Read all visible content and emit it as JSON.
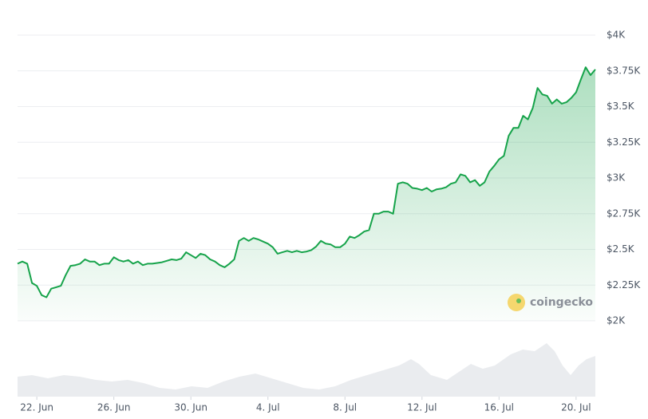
{
  "chart_data": {
    "type": "area",
    "series": [
      {
        "name": null,
        "color": "#16a34a",
        "values": [
          2400,
          2415,
          2400,
          2265,
          2245,
          2180,
          2165,
          2225,
          2235,
          2245,
          2320,
          2385,
          2390,
          2400,
          2430,
          2415,
          2415,
          2390,
          2400,
          2400,
          2445,
          2425,
          2415,
          2425,
          2400,
          2415,
          2390,
          2400,
          2400,
          2405,
          2410,
          2420,
          2430,
          2425,
          2435,
          2480,
          2460,
          2440,
          2470,
          2460,
          2430,
          2415,
          2390,
          2375,
          2400,
          2430,
          2560,
          2580,
          2560,
          2580,
          2570,
          2555,
          2540,
          2515,
          2470,
          2480,
          2490,
          2480,
          2490,
          2480,
          2485,
          2495,
          2520,
          2560,
          2540,
          2535,
          2515,
          2515,
          2540,
          2590,
          2580,
          2600,
          2625,
          2635,
          2750,
          2750,
          2765,
          2765,
          2750,
          2960,
          2970,
          2960,
          2930,
          2925,
          2915,
          2930,
          2905,
          2920,
          2925,
          2935,
          2960,
          2970,
          3025,
          3015,
          2970,
          2985,
          2945,
          2970,
          3045,
          3085,
          3130,
          3155,
          3295,
          3350,
          3350,
          3435,
          3410,
          3490,
          3630,
          3585,
          3575,
          3520,
          3550,
          3520,
          3530,
          3560,
          3600,
          3690,
          3775,
          3720,
          3760
        ]
      }
    ],
    "xlim": [
      0,
      120
    ],
    "xticks": [
      {
        "value": 4,
        "label": "22. Jun"
      },
      {
        "value": 20,
        "label": "26. Jun"
      },
      {
        "value": 36,
        "label": "30. Jun"
      },
      {
        "value": 52,
        "label": "4. Jul"
      },
      {
        "value": 68,
        "label": "8. Jul"
      },
      {
        "value": 84,
        "label": "12. Jul"
      },
      {
        "value": 100,
        "label": "16. Jul"
      },
      {
        "value": 116,
        "label": "20. Jul"
      }
    ],
    "ylim": [
      2000,
      4000
    ],
    "yticks": [
      {
        "value": 2000,
        "label": "$2K"
      },
      {
        "value": 2250,
        "label": "$2.25K"
      },
      {
        "value": 2500,
        "label": "$2.5K"
      },
      {
        "value": 2750,
        "label": "$2.75K"
      },
      {
        "value": 3000,
        "label": "$3K"
      },
      {
        "value": 3250,
        "label": "$3.25K"
      },
      {
        "value": 3500,
        "label": "$3.5K"
      },
      {
        "value": 3750,
        "label": "$3.75K"
      },
      {
        "value": 4000,
        "label": "$4K"
      }
    ],
    "grid": true,
    "watermark": "coingecko"
  }
}
